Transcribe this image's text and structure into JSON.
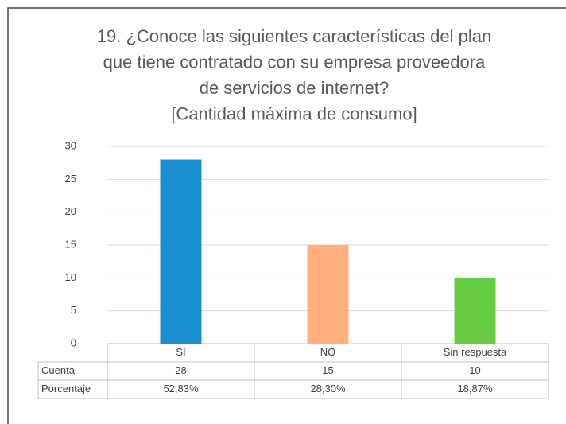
{
  "chart_data": {
    "type": "bar",
    "title_lines": [
      "19. ¿Conoce las siguientes características del plan",
      "que tiene contratado con su empresa proveedora",
      "de servicios de internet?",
      "[Cantidad máxima de consumo]"
    ],
    "categories": [
      "SI",
      "NO",
      "Sin respuesta"
    ],
    "values": [
      28,
      15,
      10
    ],
    "colors": [
      "#1b8ecf",
      "#ffb07e",
      "#66cc44"
    ],
    "ylim": [
      0,
      30
    ],
    "yticks": [
      0,
      5,
      10,
      15,
      20,
      25,
      30
    ],
    "grid": true,
    "table": {
      "row_labels": [
        "Cuenta",
        "Porcentaje"
      ],
      "percentages": [
        "52,83%",
        "28,30%",
        "18,87%"
      ]
    }
  }
}
